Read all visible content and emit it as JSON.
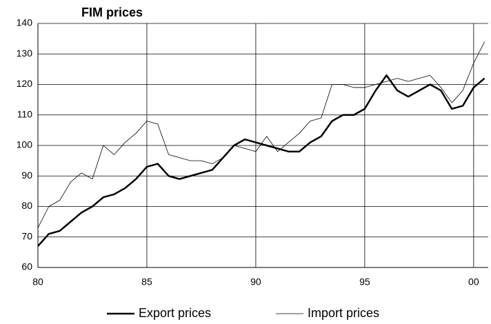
{
  "chart_data": {
    "type": "line",
    "title": "FIM prices",
    "x": [
      1980,
      1980.5,
      1981,
      1981.5,
      1982,
      1982.5,
      1983,
      1983.5,
      1984,
      1984.5,
      1985,
      1985.5,
      1986,
      1986.5,
      1987,
      1987.5,
      1988,
      1988.5,
      1989,
      1989.5,
      1990,
      1990.5,
      1991,
      1991.5,
      1992,
      1992.5,
      1993,
      1993.5,
      1994,
      1994.5,
      1995,
      1995.5,
      1996,
      1996.5,
      1997,
      1997.5,
      1998,
      1998.5,
      1999,
      1999.5,
      2000,
      2000.5
    ],
    "series": [
      {
        "name": "Export prices",
        "color": "#000000",
        "width": 2.5,
        "values": [
          67,
          71,
          72,
          75,
          78,
          80,
          83,
          84,
          86,
          89,
          93,
          94,
          90,
          89,
          90,
          91,
          92,
          96,
          100,
          102,
          101,
          100,
          99,
          98,
          98,
          101,
          103,
          108,
          110,
          110,
          112,
          118,
          123,
          118,
          116,
          118,
          120,
          118,
          112,
          113,
          119,
          122
        ]
      },
      {
        "name": "Import prices",
        "color": "#000000",
        "width": 0.8,
        "values": [
          73,
          80,
          82,
          88,
          91,
          89,
          100,
          97,
          101,
          104,
          108,
          107,
          97,
          96,
          95,
          95,
          94,
          96,
          100,
          99,
          98,
          103,
          98,
          101,
          104,
          108,
          109,
          120,
          120,
          119,
          119,
          120,
          121,
          122,
          121,
          122,
          123,
          119,
          114,
          118,
          127,
          134
        ]
      }
    ],
    "xlim": [
      1980,
      2000.67
    ],
    "xticks": [
      {
        "value": 1980,
        "label": "80"
      },
      {
        "value": 1985,
        "label": "85"
      },
      {
        "value": 1990,
        "label": "90"
      },
      {
        "value": 1995,
        "label": "95"
      },
      {
        "value": 2000,
        "label": "00"
      }
    ],
    "ylim": [
      60,
      140
    ],
    "yticks": [
      60,
      70,
      80,
      90,
      100,
      110,
      120,
      130,
      140
    ],
    "grid": true,
    "legend": "bottom"
  }
}
